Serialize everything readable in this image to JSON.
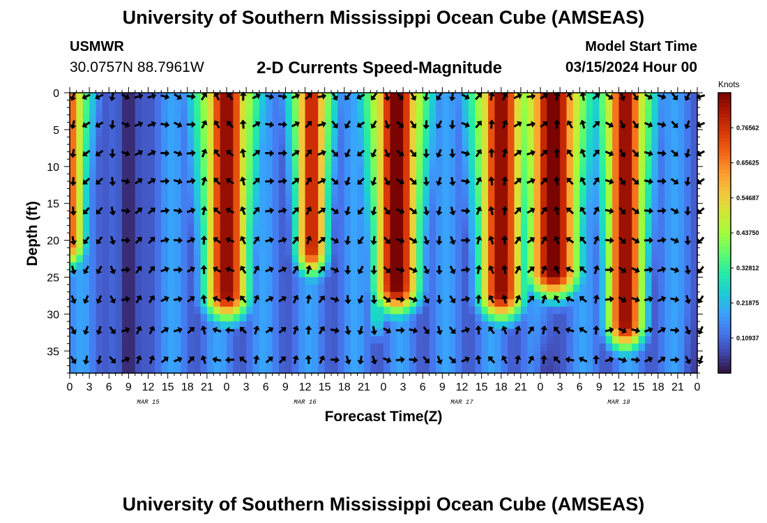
{
  "header": {
    "title": "University of Southern Mississippi Ocean Cube (AMSEAS)",
    "station": "USMWR",
    "lat_lon": "30.0757N  88.7961W",
    "subtitle": "2-D Currents Speed-Magnitude",
    "model_start_label": "Model Start Time",
    "model_start_value": "03/15/2024 Hour 00"
  },
  "footer": {
    "title": "University of Southern Mississippi Ocean Cube (AMSEAS)"
  },
  "colors": {
    "background": "#ffffff",
    "text": "#000000",
    "arrow": "#000000",
    "colormap": [
      "#30123b",
      "#4145ab",
      "#4675ed",
      "#39a2fc",
      "#1bcfd4",
      "#24eca6",
      "#61fc6c",
      "#a4fc3b",
      "#d1e834",
      "#f3c63a",
      "#fe9b2d",
      "#f36315",
      "#d93806",
      "#b11901",
      "#7a0402"
    ]
  },
  "chart_data": {
    "type": "heatmap",
    "title": "2-D Currents Speed-Magnitude",
    "xlabel": "Forecast Time(Z)",
    "ylabel": "Depth (ft)",
    "x_ticks": [
      "0",
      "3",
      "6",
      "9",
      "12",
      "15",
      "18",
      "21",
      "0",
      "3",
      "6",
      "9",
      "12",
      "15",
      "18",
      "21",
      "0",
      "3",
      "6",
      "9",
      "12",
      "15",
      "18",
      "21",
      "0",
      "3",
      "6",
      "9",
      "12",
      "15",
      "18",
      "21",
      "0"
    ],
    "x_range_hours": [
      0,
      96
    ],
    "day_labels": [
      "MAR 15",
      "MAR 16",
      "MAR 17",
      "MAR 18"
    ],
    "day_label_hours": [
      12,
      36,
      60,
      84
    ],
    "y_ticks": [
      0,
      5,
      10,
      15,
      20,
      25,
      30,
      35
    ],
    "ylim": [
      0,
      38
    ],
    "y_inverted": true,
    "colorbar": {
      "unit": "Knots",
      "range": [
        0,
        0.875
      ],
      "tick_values": [
        0.76562,
        0.65625,
        0.54687,
        0.4375,
        0.32812,
        0.21875,
        0.10937
      ],
      "tick_labels": [
        "0.76562",
        "0.65625",
        "0.54687",
        "0.43750",
        "0.32812",
        "0.21875",
        "0.10937"
      ]
    },
    "speed_peaks": [
      {
        "hour": 0,
        "speed": 0.7,
        "half_width_hours": 2.5,
        "max_depth_ft": 20
      },
      {
        "hour": 24,
        "speed": 0.86,
        "half_width_hours": 3.5,
        "max_depth_ft": 27
      },
      {
        "hour": 37,
        "speed": 0.8,
        "half_width_hours": 2.5,
        "max_depth_ft": 21
      },
      {
        "hour": 47,
        "speed": 0.3,
        "half_width_hours": 1.5,
        "max_depth_ft": 30
      },
      {
        "hour": 50,
        "speed": 0.9,
        "half_width_hours": 3.5,
        "max_depth_ft": 26
      },
      {
        "hour": 66,
        "speed": 0.86,
        "half_width_hours": 3.5,
        "max_depth_ft": 27
      },
      {
        "hour": 74,
        "speed": 0.9,
        "half_width_hours": 4.0,
        "max_depth_ft": 24
      },
      {
        "hour": 85,
        "speed": 0.86,
        "half_width_hours": 3.0,
        "max_depth_ft": 31
      }
    ],
    "speed_minima": [
      {
        "hour": 9,
        "speed": 0.02,
        "note": "dark blue trough full depth"
      },
      {
        "hour": 73,
        "speed": 0.05,
        "note": "dark at bottom"
      },
      {
        "hour": 96,
        "speed": 0.05,
        "note": "dark at bottom"
      }
    ],
    "arrow_depths_ft": [
      0.5,
      4.3,
      8.2,
      12,
      16,
      20,
      24,
      28,
      32.2,
      36.2
    ],
    "arrow_hour_step": 2
  }
}
